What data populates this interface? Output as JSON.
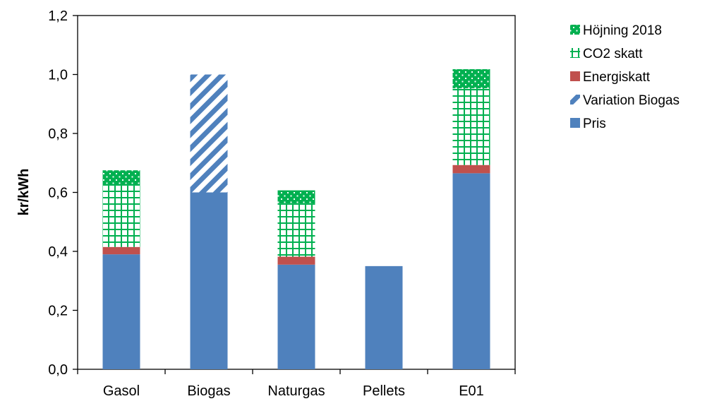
{
  "chart_data": {
    "type": "bar",
    "stacked": true,
    "categories": [
      "Gasol",
      "Biogas",
      "Naturgas",
      "Pellets",
      "E01"
    ],
    "series": [
      {
        "name": "Pris",
        "values": [
          0.39,
          0.6,
          0.355,
          0.35,
          0.665
        ],
        "color": "#4F81BD",
        "pattern": "solid"
      },
      {
        "name": "Variation Biogas",
        "values": [
          0,
          0.4,
          0,
          0,
          0
        ],
        "color": "#4F81BD",
        "pattern": "diagonal-stripes"
      },
      {
        "name": "Energiskatt",
        "values": [
          0.025,
          0,
          0.027,
          0,
          0.028
        ],
        "color": "#C0504D",
        "pattern": "solid"
      },
      {
        "name": "CO2 skatt",
        "values": [
          0.21,
          0,
          0.18,
          0,
          0.26
        ],
        "color": "#00B050",
        "pattern": "grid"
      },
      {
        "name": "Höjning 2018",
        "values": [
          0.05,
          0,
          0.045,
          0,
          0.065
        ],
        "color": "#00B050",
        "pattern": "dotted"
      }
    ],
    "xlabel": "",
    "ylabel": "kr/kWh",
    "ylim": [
      0,
      1.2
    ],
    "yticks": [
      "0,0",
      "0,2",
      "0,4",
      "0,6",
      "0,8",
      "1,0",
      "1,2"
    ],
    "grid": false,
    "legend_position": "right",
    "legend_order": [
      "Höjning 2018",
      "CO2 skatt",
      "Energiskatt",
      "Variation Biogas",
      "Pris"
    ]
  }
}
